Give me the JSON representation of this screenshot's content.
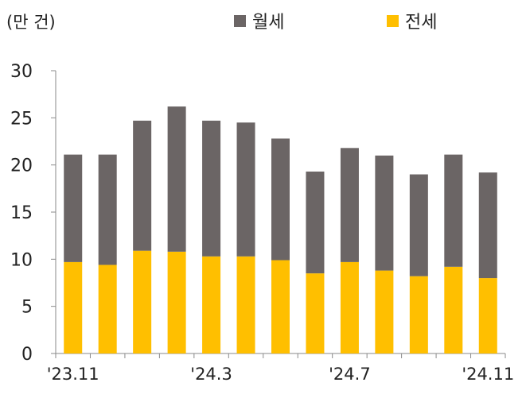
{
  "unit_label": "(만 건)",
  "colors": {
    "monthly_rent": "#6b6565",
    "jeonse": "#ffbf00",
    "axis": "#8a8a8a"
  },
  "chart_data": {
    "type": "bar",
    "stacked": true,
    "categories": [
      "'23.11",
      "'23.12",
      "'24.1",
      "'24.2",
      "'24.3",
      "'24.4",
      "'24.5",
      "'24.6",
      "'24.7",
      "'24.8",
      "'24.9",
      "'24.10",
      "'24.11"
    ],
    "x_tick_labels": [
      "'23.11",
      "'24.3",
      "'24.7",
      "'24.11"
    ],
    "series": [
      {
        "name": "전세",
        "values": [
          9.7,
          9.4,
          10.9,
          10.8,
          10.3,
          10.3,
          9.9,
          8.5,
          9.7,
          8.8,
          8.2,
          9.2,
          8.0
        ]
      },
      {
        "name": "월세",
        "values": [
          11.4,
          11.7,
          13.8,
          15.4,
          14.4,
          14.2,
          12.9,
          10.8,
          12.1,
          12.2,
          10.8,
          11.9,
          11.2
        ]
      }
    ],
    "ylim": [
      0,
      30
    ],
    "yticks": [
      0,
      5,
      10,
      15,
      20,
      25,
      30
    ],
    "legend": [
      "월세",
      "전세"
    ],
    "legend_position": "top"
  }
}
